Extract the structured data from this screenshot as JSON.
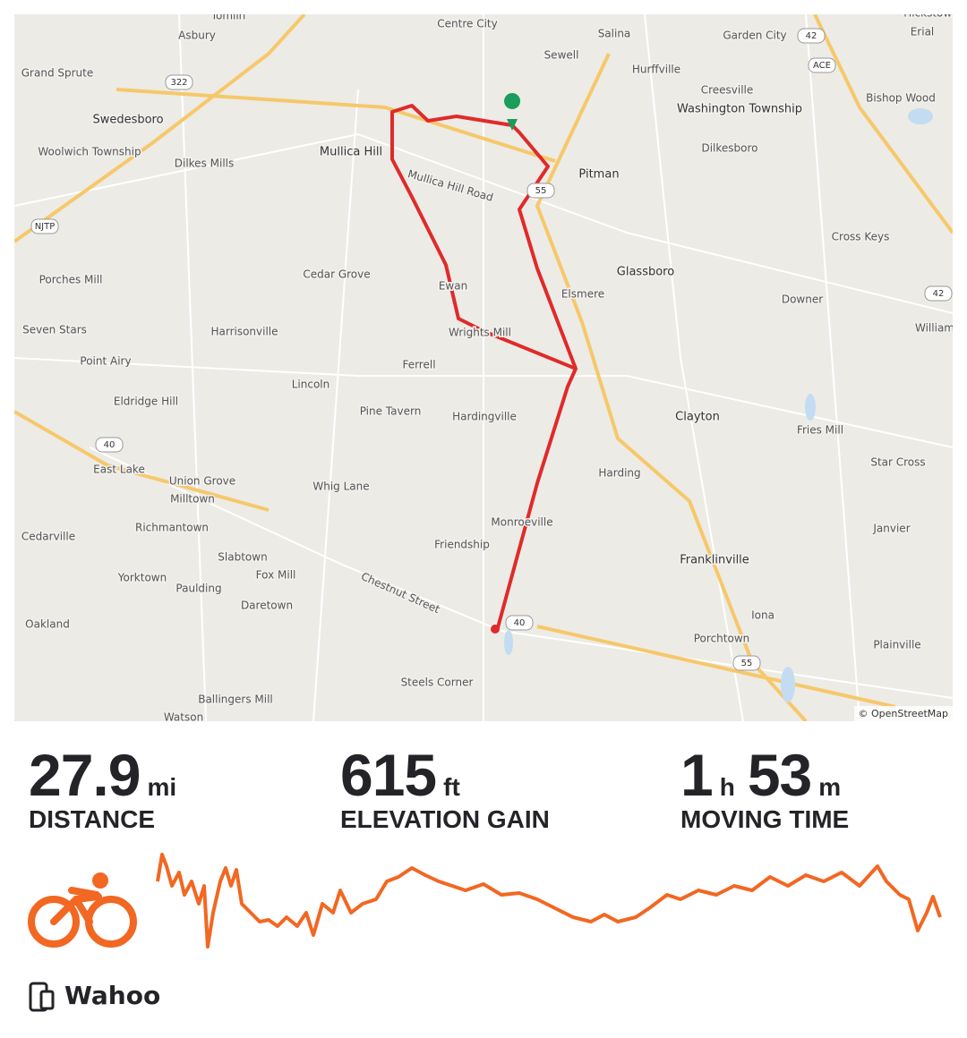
{
  "map": {
    "labels": [
      "Tomlin",
      "Asbury",
      "Grand Sprute",
      "Swedesboro",
      "Woolwich Township",
      "Dilkes Mills",
      "Mullica Hill",
      "Centre City",
      "Salina",
      "Sewell",
      "Hurffville",
      "Garden City",
      "Hickstown",
      "Erial",
      "Creesville",
      "Washington Township",
      "Bishop Wood",
      "Dilkesboro",
      "Pitman",
      "Mullica Hill Road",
      "Cross Keys",
      "Glassboro",
      "Elsmere",
      "Downer",
      "Porches Mill",
      "Cedar Grove",
      "Ewan",
      "Wrights Mill",
      "Seven Stars",
      "Harrisonville",
      "Point Airy",
      "Ferrell",
      "Lincoln",
      "Eldridge Hill",
      "Pine Tavern",
      "Hardingville",
      "Clayton",
      "Fries Mill",
      "East Lake",
      "Union Grove",
      "Harding",
      "Star Cross",
      "Whig Lane",
      "Milltown",
      "Monroeville",
      "Janvier",
      "Richmantown",
      "Cedarville",
      "Friendship",
      "Slabtown",
      "Fox Mill",
      "Franklinville",
      "Yorktown",
      "Paulding",
      "Daretown",
      "Chestnut Street",
      "Iona",
      "Oakland",
      "Porchtown",
      "Plainville",
      "Steels Corner",
      "Ballingers Mill",
      "William",
      "Watson"
    ],
    "shields": [
      "322",
      "42",
      "ACE",
      "NJTP",
      "55",
      "42",
      "40",
      "40",
      "55"
    ],
    "attribution": "© OpenStreetMap"
  },
  "stats": [
    {
      "value": 27.9,
      "unit": "mi",
      "label": "DISTANCE"
    },
    {
      "value": 615,
      "unit": "ft",
      "label": "ELEVATION GAIN"
    },
    {
      "value": 1,
      "unit": "h",
      "value2": 53,
      "unit2": "m",
      "label": "MOVING TIME"
    }
  ],
  "device": "Wahoo"
}
